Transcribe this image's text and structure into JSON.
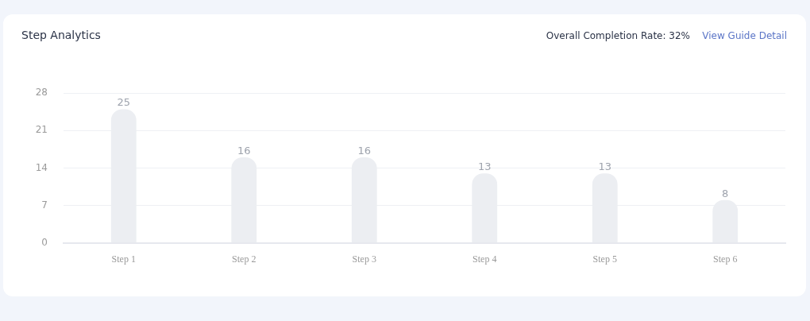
{
  "chart_data": {
    "type": "bar",
    "title": "Step Analytics",
    "subtitle": "Overall Completion Rate: 32%",
    "annotations": [
      "View Guide Detail"
    ],
    "categories": [
      "Step 1",
      "Step 2",
      "Step 3",
      "Step 4",
      "Step 5",
      "Step 6"
    ],
    "values": [
      25,
      16,
      16,
      13,
      13,
      8
    ],
    "color": "#eceef2",
    "ylim": [
      0,
      28
    ],
    "yticks": [
      0,
      7,
      14,
      21,
      28
    ],
    "grid": "y",
    "data_labels": true,
    "legend": false
  }
}
